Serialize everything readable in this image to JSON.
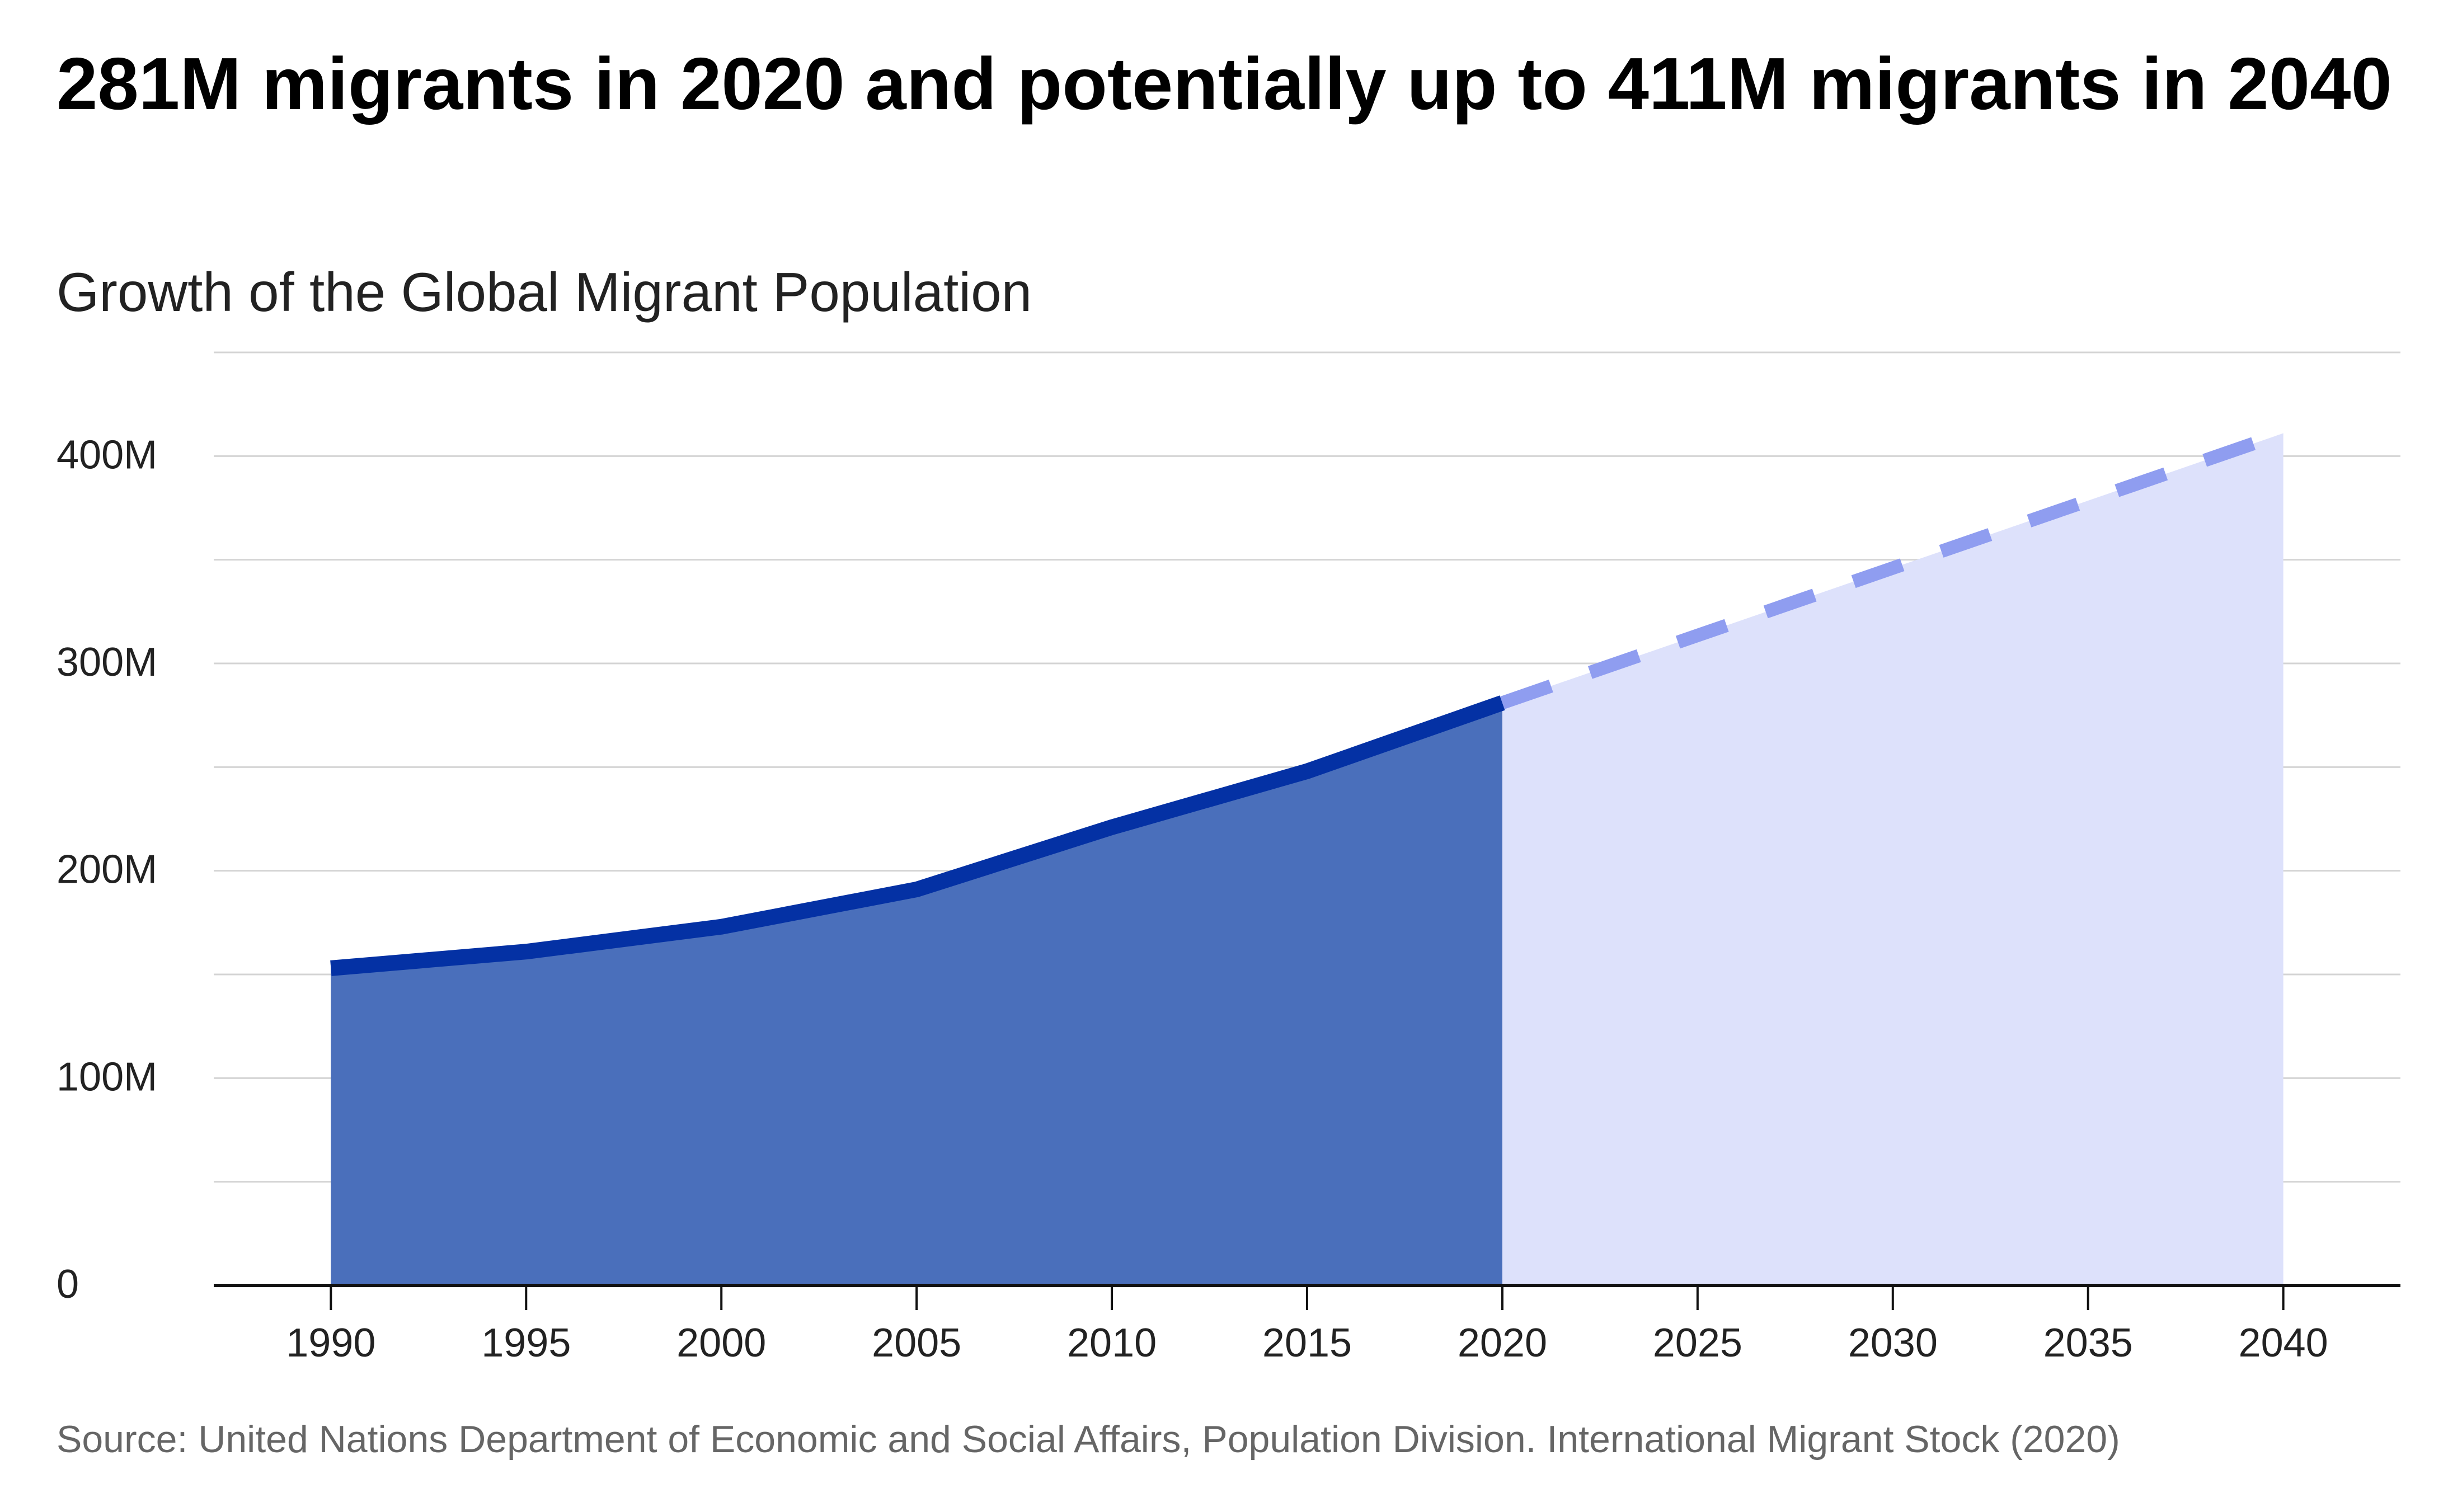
{
  "chart_data": {
    "type": "area",
    "title": "281M migrants in 2020 and potentially up to 411M migrants in 2040",
    "subtitle": "Growth of the Global Migrant Population",
    "source": "Source: United Nations Department of Economic and Social Affairs, Population Division. International Migrant Stock (2020)",
    "xlabel": "",
    "ylabel": "",
    "x_ticks": [
      "1990",
      "1995",
      "2000",
      "2005",
      "2010",
      "2015",
      "2020",
      "2025",
      "2030",
      "2035",
      "2040"
    ],
    "y_ticks": [
      {
        "value": 0,
        "label": "0"
      },
      {
        "value": 100,
        "label": "100M"
      },
      {
        "value": 200,
        "label": "200M"
      },
      {
        "value": 300,
        "label": "300M"
      },
      {
        "value": 400,
        "label": "400M"
      }
    ],
    "xlim": [
      1987,
      2043
    ],
    "ylim": [
      0,
      450
    ],
    "grid": true,
    "series": [
      {
        "style": "solid",
        "color": "#0431a4",
        "fill": "#4a6fbb",
        "x": [
          1990,
          1995,
          2000,
          2005,
          2010,
          2015,
          2020
        ],
        "values": [
          153,
          161,
          173,
          191,
          221,
          248,
          281
        ]
      },
      {
        "style": "dashed",
        "color": "#8f9df0",
        "fill": "#dde1fb",
        "x": [
          2020,
          2040
        ],
        "values": [
          281,
          411
        ]
      }
    ]
  }
}
